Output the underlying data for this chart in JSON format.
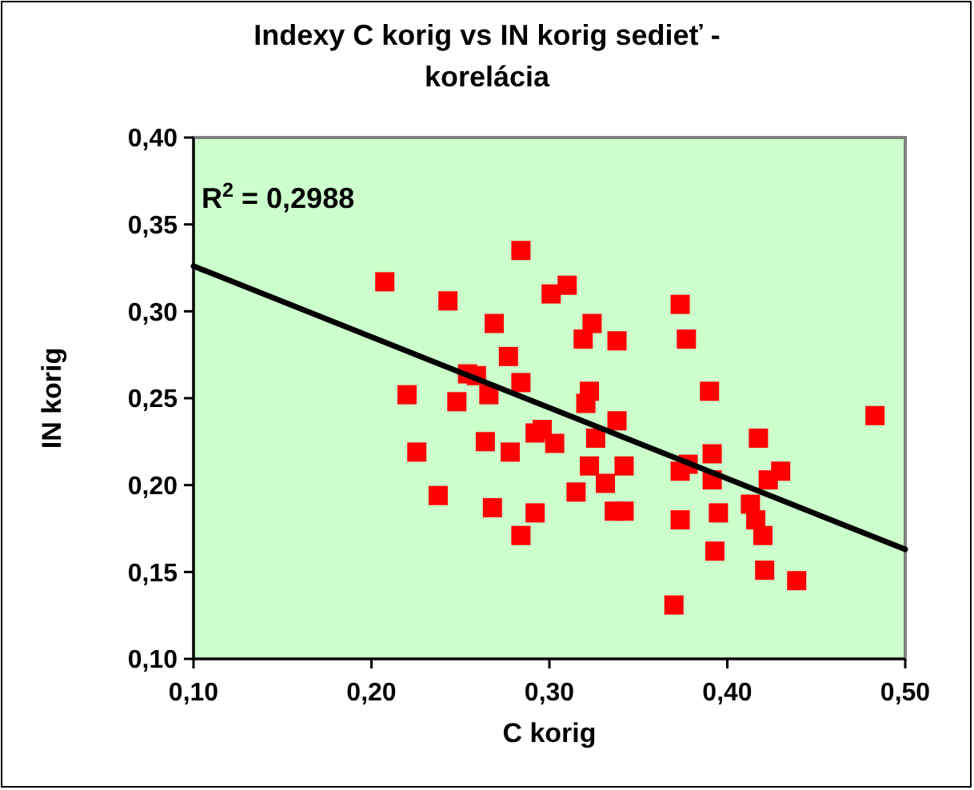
{
  "chart_data": {
    "type": "scatter",
    "title": "Indexy C korig vs IN korig sedieť - korelácia",
    "xlabel": "C korig",
    "ylabel": "IN korig",
    "annotations": [
      "R$^{2}$ = 0,2988"
    ],
    "xlim": [
      0.1,
      0.5
    ],
    "ylim": [
      0.1,
      0.4
    ],
    "xticks": [
      {
        "value": 0.1,
        "label": "0,10"
      },
      {
        "value": 0.2,
        "label": "0,20"
      },
      {
        "value": 0.3,
        "label": "0,30"
      },
      {
        "value": 0.4,
        "label": "0,40"
      },
      {
        "value": 0.5,
        "label": "0,50"
      }
    ],
    "yticks": [
      {
        "value": 0.1,
        "label": "0,10"
      },
      {
        "value": 0.15,
        "label": "0,15"
      },
      {
        "value": 0.2,
        "label": "0,20"
      },
      {
        "value": 0.25,
        "label": "0,25"
      },
      {
        "value": 0.3,
        "label": "0,30"
      },
      {
        "value": 0.35,
        "label": "0,35"
      },
      {
        "value": 0.4,
        "label": "0,40"
      }
    ],
    "grid": false,
    "marker": "square",
    "series": [
      {
        "color": "#ff0000",
        "x": [
          0.2075,
          0.243,
          0.269,
          0.284,
          0.277,
          0.254,
          0.259,
          0.284,
          0.22,
          0.248,
          0.266,
          0.2255,
          0.264,
          0.278,
          0.292,
          0.2375,
          0.268,
          0.292,
          0.284,
          0.301,
          0.31,
          0.324,
          0.319,
          0.338,
          0.3735,
          0.377,
          0.39,
          0.3225,
          0.3205,
          0.338,
          0.296,
          0.303,
          0.326,
          0.3225,
          0.342,
          0.3315,
          0.315,
          0.3365,
          0.342,
          0.3735,
          0.378,
          0.3915,
          0.3915,
          0.4175,
          0.43,
          0.423,
          0.413,
          0.416,
          0.42,
          0.395,
          0.3735,
          0.393,
          0.421,
          0.439,
          0.37,
          0.483
        ],
        "values": [
          0.317,
          0.306,
          0.293,
          0.335,
          0.274,
          0.264,
          0.263,
          0.259,
          0.252,
          0.248,
          0.252,
          0.219,
          0.225,
          0.219,
          0.23,
          0.194,
          0.187,
          0.184,
          0.171,
          0.31,
          0.315,
          0.293,
          0.284,
          0.283,
          0.304,
          0.284,
          0.254,
          0.254,
          0.247,
          0.237,
          0.232,
          0.224,
          0.227,
          0.211,
          0.211,
          0.201,
          0.196,
          0.185,
          0.185,
          0.208,
          0.212,
          0.218,
          0.203,
          0.227,
          0.208,
          0.203,
          0.189,
          0.18,
          0.171,
          0.184,
          0.18,
          0.162,
          0.151,
          0.145,
          0.131,
          0.24
        ]
      },
      {
        "type": "line",
        "color": "#000000",
        "marker": "none",
        "line_style": "solid",
        "x": [
          0.1,
          0.5
        ],
        "values": [
          0.326,
          0.163
        ]
      }
    ]
  }
}
